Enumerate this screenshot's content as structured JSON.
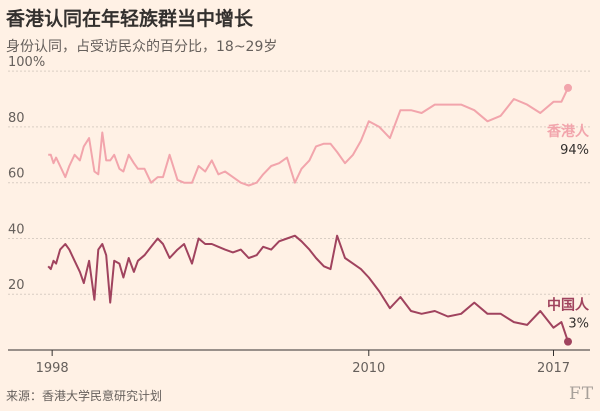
{
  "chart_data": {
    "type": "line",
    "title": "香港认同在年轻族群当中增长",
    "subtitle": "身份认同，占受访民众的百分比，18~29岁",
    "source": "来源：香港大学民意研究计划",
    "brand": "FT",
    "ylim": [
      0,
      104
    ],
    "xlim": [
      1997.35,
      2017.55
    ],
    "y_ticks": [
      {
        "value": 20,
        "label": "20"
      },
      {
        "value": 40,
        "label": "40"
      },
      {
        "value": 60,
        "label": "60"
      },
      {
        "value": 80,
        "label": "80"
      },
      {
        "value": 100,
        "label": "100%"
      }
    ],
    "x_ticks": [
      {
        "value": 1998,
        "label": "1998"
      },
      {
        "value": 2010,
        "label": "2010"
      },
      {
        "value": 2017,
        "label": "2017"
      }
    ],
    "grid": true,
    "series": [
      {
        "name": "香港人",
        "end_label": "94%",
        "color": "#f2a5ac",
        "x": [
          1997.85,
          1997.95,
          1998.05,
          1998.15,
          1998.3,
          1998.5,
          1998.65,
          1998.85,
          1999.05,
          1999.2,
          1999.4,
          1999.6,
          1999.75,
          1999.9,
          2000.05,
          2000.2,
          2000.35,
          2000.55,
          2000.7,
          2000.9,
          2001.1,
          2001.25,
          2001.5,
          2001.75,
          2002.0,
          2002.2,
          2002.45,
          2002.75,
          2003.0,
          2003.3,
          2003.55,
          2003.8,
          2004.05,
          2004.3,
          2004.55,
          2004.85,
          2005.15,
          2005.45,
          2005.75,
          2006.0,
          2006.3,
          2006.6,
          2006.9,
          2007.2,
          2007.45,
          2007.75,
          2008.0,
          2008.3,
          2008.55,
          2008.8,
          2009.1,
          2009.4,
          2009.7,
          2010.0,
          2010.4,
          2010.8,
          2011.2,
          2011.6,
          2012.0,
          2012.5,
          2013.0,
          2013.5,
          2014.0,
          2014.5,
          2015.0,
          2015.5,
          2016.0,
          2016.5,
          2017.0,
          2017.3,
          2017.55
        ],
        "values": [
          70,
          70,
          67,
          69,
          66,
          62,
          66,
          70,
          68,
          73,
          76,
          64,
          63,
          78,
          68,
          68,
          70,
          65,
          64,
          70,
          67,
          65,
          65,
          60,
          62,
          62,
          70,
          61,
          60,
          60,
          66,
          64,
          68,
          63,
          64,
          62,
          60,
          59,
          60,
          63,
          66,
          67,
          69,
          60,
          65,
          68,
          73,
          74,
          74,
          71,
          67,
          70,
          75,
          82,
          80,
          76,
          86,
          86,
          85,
          88,
          88,
          88,
          86,
          82,
          84,
          90,
          88,
          85,
          89,
          89,
          94
        ]
      },
      {
        "name": "中国人",
        "end_label": "3%",
        "color": "#a0435e",
        "x": [
          1997.85,
          1997.95,
          1998.05,
          1998.15,
          1998.3,
          1998.5,
          1998.65,
          1998.85,
          1999.05,
          1999.2,
          1999.4,
          1999.6,
          1999.75,
          1999.9,
          2000.05,
          2000.2,
          2000.35,
          2000.55,
          2000.7,
          2000.9,
          2001.1,
          2001.25,
          2001.5,
          2001.75,
          2002.0,
          2002.2,
          2002.45,
          2002.75,
          2003.0,
          2003.3,
          2003.55,
          2003.8,
          2004.05,
          2004.3,
          2004.55,
          2004.85,
          2005.15,
          2005.45,
          2005.75,
          2006.0,
          2006.3,
          2006.6,
          2006.9,
          2007.2,
          2007.45,
          2007.75,
          2008.0,
          2008.3,
          2008.55,
          2008.8,
          2009.1,
          2009.4,
          2009.7,
          2010.0,
          2010.4,
          2010.8,
          2011.2,
          2011.6,
          2012.0,
          2012.5,
          2013.0,
          2013.5,
          2014.0,
          2014.5,
          2015.0,
          2015.5,
          2016.0,
          2016.5,
          2017.0,
          2017.3,
          2017.55
        ],
        "values": [
          30,
          29,
          32,
          31,
          36,
          38,
          36,
          32,
          28,
          24,
          32,
          18,
          36,
          38,
          34,
          17,
          32,
          31,
          26,
          33,
          28,
          32,
          34,
          37,
          40,
          38,
          33,
          36,
          38,
          31,
          40,
          38,
          38,
          37,
          36,
          35,
          36,
          33,
          34,
          37,
          36,
          39,
          40,
          41,
          39,
          36,
          33,
          30,
          29,
          41,
          33,
          31,
          29,
          26,
          21,
          15,
          19,
          14,
          13,
          14,
          12,
          13,
          17,
          13,
          13,
          10,
          9,
          14,
          8,
          10,
          3
        ]
      }
    ]
  }
}
